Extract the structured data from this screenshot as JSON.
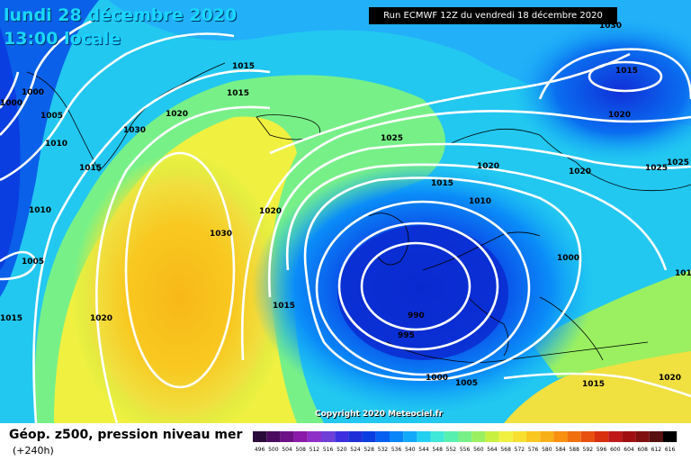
{
  "title": {
    "date": "lundi 28 décembre 2020",
    "time": "13:00 locale"
  },
  "run_banner": "Run ECMWF 12Z du vendredi 18 décembre 2020",
  "copyright": "Copyright 2020 Meteociel.fr",
  "footer": {
    "title": "Géop. z500, pression niveau mer",
    "subtitle": "(+240h)"
  },
  "legend": {
    "values": [
      "496",
      "500",
      "504",
      "508",
      "512",
      "516",
      "520",
      "524",
      "528",
      "532",
      "536",
      "540",
      "544",
      "548",
      "552",
      "556",
      "560",
      "564",
      "568",
      "572",
      "576",
      "580",
      "584",
      "588",
      "592",
      "596",
      "600",
      "604",
      "608",
      "612",
      "616"
    ],
    "colors": [
      "#2b0b3a",
      "#4b0c5e",
      "#6d1186",
      "#8a1aa8",
      "#8f2fc8",
      "#6f3fd8",
      "#3d2fe0",
      "#1f2fd8",
      "#0a3ee0",
      "#0860f0",
      "#0a85f8",
      "#12aaf8",
      "#22cff0",
      "#3fe8d8",
      "#58f0b0",
      "#78f088",
      "#9af060",
      "#c8f040",
      "#f0f040",
      "#f8e030",
      "#f8c820",
      "#f8b018",
      "#f89010",
      "#f07010",
      "#e85010",
      "#d83010",
      "#c01818",
      "#a01010",
      "#801010",
      "#581010",
      "#000000"
    ]
  },
  "isobar_labels": [
    {
      "text": "1000"
    },
    {
      "text": "1000"
    },
    {
      "text": "1005"
    },
    {
      "text": "1010"
    },
    {
      "text": "1015"
    },
    {
      "text": "1010"
    },
    {
      "text": "1005"
    },
    {
      "text": "1015"
    },
    {
      "text": "1020"
    },
    {
      "text": "1030"
    },
    {
      "text": "1020"
    },
    {
      "text": "1015"
    },
    {
      "text": "1015"
    },
    {
      "text": "1030"
    },
    {
      "text": "1020"
    },
    {
      "text": "1015"
    },
    {
      "text": "1025"
    },
    {
      "text": "1015"
    },
    {
      "text": "1010"
    },
    {
      "text": "1020"
    },
    {
      "text": "1020"
    },
    {
      "text": "1020"
    },
    {
      "text": "1015"
    },
    {
      "text": "1025"
    },
    {
      "text": "1025"
    },
    {
      "text": "1000"
    },
    {
      "text": "990"
    },
    {
      "text": "995"
    },
    {
      "text": "1000"
    },
    {
      "text": "1005"
    },
    {
      "text": "1015"
    },
    {
      "text": "1020"
    },
    {
      "text": "1030"
    },
    {
      "text": "1010"
    }
  ]
}
